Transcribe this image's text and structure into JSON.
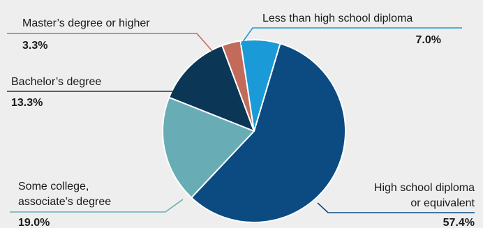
{
  "chart_data": {
    "type": "pie",
    "slices": [
      {
        "label_lines": [
          "High school diploma",
          "or equivalent"
        ],
        "value": 57.4,
        "display": "57.4%",
        "color": "#0b4b82"
      },
      {
        "label_lines": [
          "Some college,",
          "associate’s degree"
        ],
        "value": 19.0,
        "display": "19.0%",
        "color": "#68adb5"
      },
      {
        "label_lines": [
          "Bachelor’s degree"
        ],
        "value": 13.3,
        "display": "13.3%",
        "color": "#0b3656"
      },
      {
        "label_lines": [
          "Master’s degree or higher"
        ],
        "value": 3.3,
        "display": "3.3%",
        "color": "#c36b5a"
      },
      {
        "label_lines": [
          "Less than high school diploma"
        ],
        "value": 7.0,
        "display": "7.0%",
        "color": "#1a9ad6"
      }
    ],
    "legend": "leader-line labels"
  }
}
